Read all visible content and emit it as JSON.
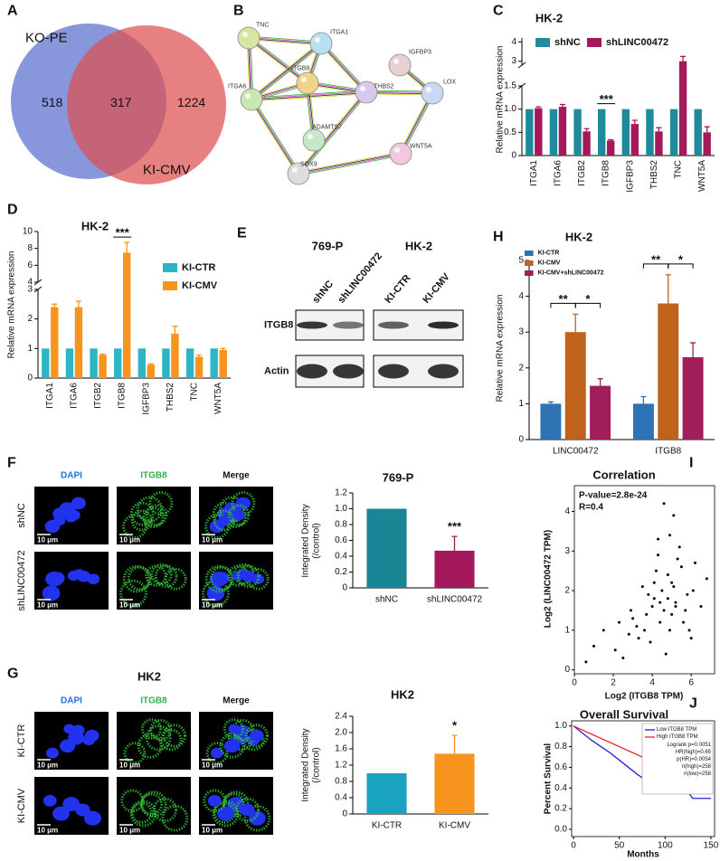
{
  "panel_letters": [
    "A",
    "B",
    "C",
    "D",
    "E",
    "H",
    "F",
    "I",
    "G",
    "J"
  ],
  "venn": {
    "sets": [
      "KO-PE",
      "KI-CMV"
    ],
    "counts": [
      518,
      317,
      1224
    ]
  },
  "network": {
    "nodes": [
      "TNC",
      "ITGA1",
      "ITGB8",
      "ITGA6",
      "THBS2",
      "IGFBP3",
      "LOX",
      "ADAMTS7",
      "WNT5A",
      "SOX9"
    ]
  },
  "blot": {
    "groups": [
      "769-P",
      "HK-2"
    ],
    "lanes": [
      "shNC",
      "shLINC00472",
      "KI-CTR",
      "KI-CMV"
    ],
    "rows": [
      "ITGB8",
      "Actin"
    ]
  },
  "micro_f": {
    "channels": [
      "DAPI",
      "ITGB8",
      "Merge"
    ],
    "rows": [
      "shNC",
      "shLINC00472"
    ],
    "scale": "10 μm"
  },
  "micro_g": {
    "title": "HK2",
    "channels": [
      "DAPI",
      "ITGB8",
      "Merge"
    ],
    "rows": [
      "KI-CTR",
      "KI-CMV"
    ],
    "scale": "10 μm"
  },
  "chart_data": [
    {
      "type": "bar",
      "title": "HK-2",
      "ylabel": "Relative mRNA expression",
      "categories": [
        "ITGA1",
        "ITGA6",
        "ITGB2",
        "ITGB8",
        "IGFBP3",
        "THBS2",
        "TNC",
        "WNT5A"
      ],
      "series": [
        {
          "name": "shNC",
          "color": "#1f8a99",
          "values": [
            1,
            1,
            1,
            1,
            1,
            1,
            1,
            1
          ]
        },
        {
          "name": "shLINC00472",
          "color": "#a3195b",
          "values": [
            1.02,
            1.05,
            0.52,
            0.32,
            0.68,
            0.52,
            3.0,
            0.5
          ],
          "errors": [
            0.03,
            0.05,
            0.06,
            0.02,
            0.08,
            0.08,
            0.25,
            0.12
          ]
        }
      ],
      "segments": [
        {
          "ylim": [
            0,
            1.5
          ],
          "yticks": [
            0,
            0.5,
            {
              "value": 1,
              "label": "1.0"
            },
            1.5
          ]
        },
        {
          "ylim": [
            2.8,
            4.2
          ],
          "yticks": [
            3,
            4
          ]
        }
      ],
      "annotations": [
        {
          "text": "***",
          "category": "ITGB8"
        }
      ]
    },
    {
      "type": "bar",
      "title": "HK-2",
      "ylabel": "Relative mRNA expression",
      "categories": [
        "ITGA1",
        "ITGA6",
        "ITGB2",
        "ITGB8",
        "IGFBP3",
        "THBS2",
        "TNC",
        "WNT5A"
      ],
      "series": [
        {
          "name": "KI-CTR",
          "color": "#2bb5c5",
          "values": [
            1,
            1,
            1,
            1,
            1,
            1,
            1,
            1
          ]
        },
        {
          "name": "KI-CMV",
          "color": "#f7941d",
          "values": [
            2.4,
            2.4,
            0.78,
            7.5,
            0.45,
            1.5,
            0.72,
            0.95
          ],
          "errors": [
            0.1,
            0.2,
            0.03,
            1.2,
            0.03,
            0.25,
            0.06,
            0.05
          ]
        }
      ],
      "segments": [
        {
          "ylim": [
            0,
            3
          ],
          "yticks": [
            0,
            1,
            2,
            3
          ]
        },
        {
          "ylim": [
            4,
            10
          ],
          "yticks": [
            4,
            6,
            8,
            10
          ]
        }
      ],
      "annotations": [
        {
          "text": "***",
          "category": "ITGB8"
        }
      ]
    },
    {
      "type": "bar",
      "title": "HK-2",
      "ylabel": "Relative mRNA expression",
      "categories": [
        "LINC00472",
        "ITGB8"
      ],
      "series": [
        {
          "name": "KI-CTR",
          "color": "#2e74b5",
          "values": [
            1.0,
            1.0
          ],
          "errors": [
            0.05,
            0.2
          ]
        },
        {
          "name": "KI-CMV",
          "color": "#c0621c",
          "values": [
            3.0,
            3.8
          ],
          "errors": [
            0.5,
            0.8
          ]
        },
        {
          "name": "KI-CMV+shLINC00472",
          "color": "#a01e5a",
          "values": [
            1.5,
            2.3
          ],
          "errors": [
            0.2,
            0.4
          ]
        }
      ],
      "ylim": [
        0,
        5
      ],
      "yticks": [
        0,
        1,
        2,
        3,
        4,
        5
      ],
      "annotations": [
        {
          "text": "**",
          "category": "LINC00472",
          "series": [
            "KI-CTR",
            "KI-CMV"
          ]
        },
        {
          "text": "*",
          "category": "LINC00472",
          "series": [
            "KI-CMV",
            "KI-CMV+shLINC00472"
          ]
        },
        {
          "text": "**",
          "category": "ITGB8",
          "series": [
            "KI-CTR",
            "KI-CMV"
          ]
        },
        {
          "text": "*",
          "category": "ITGB8",
          "series": [
            "KI-CMV",
            "KI-CMV+shLINC00472"
          ]
        }
      ]
    },
    {
      "type": "bar",
      "title": "769-P",
      "ylabel": [
        "Integrated Density",
        "(/control)"
      ],
      "categories": [
        "shNC",
        "shLINC00472"
      ],
      "values": [
        1.0,
        0.47
      ],
      "errors": [
        null,
        0.18
      ],
      "colors": [
        "#1a8595",
        "#a3195b"
      ],
      "ylim": [
        0,
        1.2
      ],
      "yticks": [
        0,
        0.2,
        0.4,
        0.6,
        0.8,
        {
          "value": 1,
          "label": "1.0"
        },
        1.2
      ],
      "annotations": [
        {
          "text": "***",
          "category": "shLINC00472"
        }
      ]
    },
    {
      "type": "bar",
      "title": "HK2",
      "ylabel": [
        "Integrated Density",
        "(/control)"
      ],
      "categories": [
        "KI-CTR",
        "KI-CMV"
      ],
      "values": [
        1.0,
        1.48
      ],
      "errors": [
        null,
        0.45
      ],
      "colors": [
        "#1aa3c0",
        "#f7941d"
      ],
      "ylim": [
        0,
        2.4
      ],
      "yticks": [
        0,
        0.4,
        0.8,
        1.2,
        1.6,
        {
          "value": 2,
          "label": "2.0"
        },
        2.4
      ],
      "annotations": [
        {
          "text": "*",
          "category": "KI-CMV"
        }
      ]
    },
    {
      "type": "scatter",
      "title": "Correlation",
      "xlabel": "Log2 (ITGB8 TPM)",
      "ylabel": "Log2 (LINC00472 TPM)",
      "color": "#000000",
      "x": [
        4.1,
        5.0,
        3.2,
        4.6,
        5.5,
        2.8,
        4.9,
        6.1,
        3.7,
        4.3,
        5.2,
        4.8,
        3.9,
        5.8,
        2.1,
        4.4,
        5.1,
        6.5,
        3.5,
        4.7,
        5.3,
        1.5,
        4.0,
        5.6,
        4.2,
        3.0,
        6.8,
        4.9,
        5.4,
        2.5,
        3.8,
        4.5,
        5.0,
        6.2,
        1.0,
        4.6,
        5.7,
        3.3,
        4.1,
        5.9,
        0.6,
        4.8,
        2.9,
        5.1,
        3.6,
        4.3,
        6.0,
        5.2,
        2.3,
        4.4
      ],
      "values": [
        1.8,
        2.2,
        1.1,
        1.5,
        2.6,
        0.9,
        3.4,
        2.0,
        1.4,
        2.9,
        1.7,
        2.4,
        0.7,
        1.9,
        0.5,
        1.2,
        3.9,
        1.6,
        2.1,
        0.4,
        2.8,
        1.0,
        1.6,
        1.2,
        2.5,
        1.3,
        2.3,
        1.0,
        3.1,
        0.3,
        1.9,
        2.0,
        1.4,
        2.7,
        0.6,
        4.2,
        1.5,
        0.8,
        2.2,
        1.0,
        0.2,
        1.8,
        1.5,
        2.1,
        1.0,
        3.3,
        0.8,
        1.6,
        1.2,
        1.7
      ],
      "annotations": [
        "P-value=2.8e-24",
        "R=0.4"
      ],
      "xlim": [
        0,
        7.2
      ],
      "xticks": [
        0,
        2,
        4,
        6
      ],
      "ylim": [
        -0.1,
        4.65
      ],
      "yticks": [
        0,
        1,
        2,
        3,
        4
      ]
    },
    {
      "type": "line",
      "title": "Overall Survival",
      "xlabel": "Months",
      "ylabel": "Percent Survival",
      "legend": "top-right",
      "series": [
        {
          "name": "Low ITGB8 TPM",
          "color": "#2323d6",
          "x": [
            0,
            10,
            20,
            30,
            40,
            50,
            60,
            70,
            80,
            90,
            100,
            110,
            120,
            130,
            140,
            150
          ],
          "values": [
            1,
            0.93,
            0.86,
            0.8,
            0.74,
            0.67,
            0.6,
            0.53,
            0.47,
            0.43,
            0.43,
            0.43,
            0.43,
            0.3,
            0.3,
            0.3
          ]
        },
        {
          "name": "High ITGB8 TPM",
          "color": "#e8232a",
          "x": [
            0,
            10,
            20,
            30,
            40,
            50,
            60,
            70,
            80,
            90,
            100,
            110,
            120,
            130,
            140
          ],
          "values": [
            1,
            0.96,
            0.92,
            0.88,
            0.84,
            0.8,
            0.76,
            0.72,
            0.68,
            0.65,
            0.6,
            0.58,
            0.55,
            0.55,
            0.55
          ]
        }
      ],
      "annotations": [
        "Logrank p=0.0051",
        "HR(high)=0.65",
        "p(HR)=0.0054",
        "n(high)=258",
        "n(low)=258"
      ],
      "xlim": [
        -2,
        154
      ],
      "xticks": [
        0,
        50,
        100,
        150
      ],
      "ylim": [
        -0.07,
        1.05
      ],
      "yticks": [
        {
          "value": 0,
          "label": "0.0"
        },
        0.2,
        0.4,
        0.6,
        0.8,
        {
          "value": 1,
          "label": "1.0"
        }
      ]
    }
  ]
}
